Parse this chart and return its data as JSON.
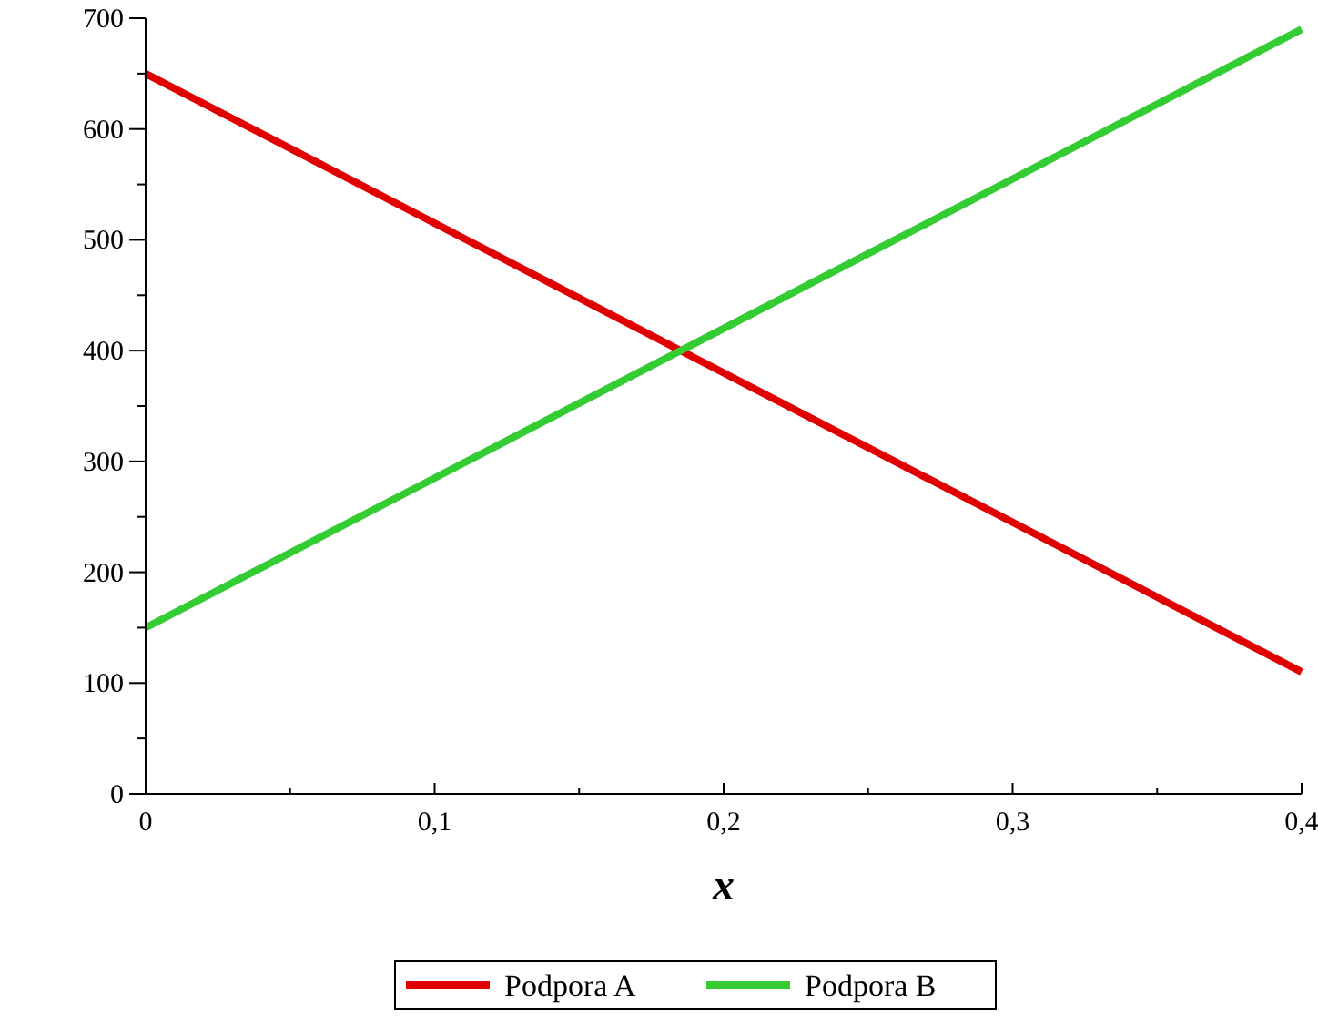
{
  "chart_data": {
    "type": "line",
    "xlabel": "x",
    "x": [
      0,
      0.4
    ],
    "series": [
      {
        "name": "Podpora A",
        "color": "#e00000",
        "values": [
          650,
          110
        ]
      },
      {
        "name": "Podpora B",
        "color": "#33cc33",
        "values": [
          150,
          690
        ]
      }
    ],
    "xlim": [
      0,
      0.4
    ],
    "xticks": [
      0,
      {
        "value": 0.05,
        "label": null
      },
      {
        "value": 0.1,
        "label": "0,1"
      },
      {
        "value": 0.15,
        "label": null
      },
      {
        "value": 0.2,
        "label": "0,2"
      },
      {
        "value": 0.25,
        "label": null
      },
      {
        "value": 0.3,
        "label": "0,3"
      },
      {
        "value": 0.35,
        "label": null
      },
      {
        "value": 0.4,
        "label": "0,4"
      }
    ],
    "ylim": [
      0,
      700
    ],
    "yticks": [
      0,
      {
        "value": 50,
        "label": null
      },
      100,
      {
        "value": 150,
        "label": null
      },
      200,
      {
        "value": 250,
        "label": null
      },
      300,
      {
        "value": 350,
        "label": null
      },
      400,
      {
        "value": 450,
        "label": null
      },
      500,
      {
        "value": 550,
        "label": null
      },
      600,
      {
        "value": 650,
        "label": null
      },
      700
    ],
    "grid": false,
    "legend": "bottom",
    "marker": "none",
    "line_style": "solid"
  }
}
